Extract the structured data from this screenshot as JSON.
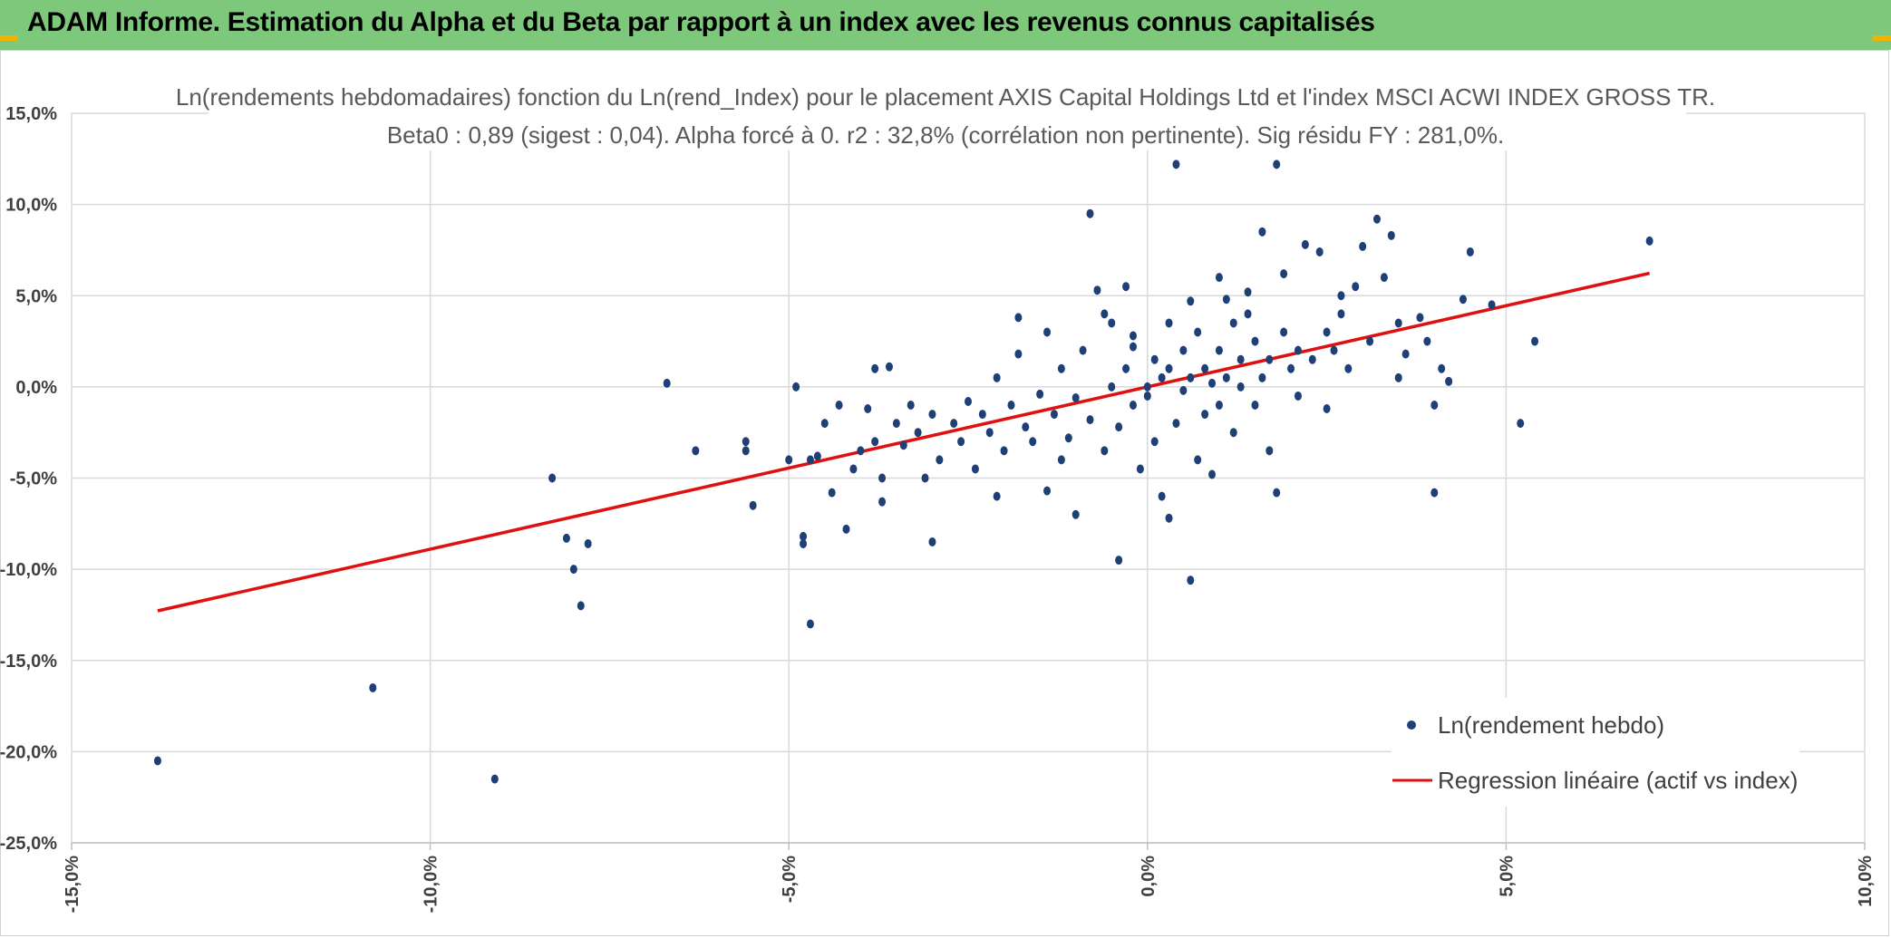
{
  "header": {
    "title": "ADAM Informe. Estimation du Alpha et du Beta par rapport à un index avec les revenus connus capitalisés"
  },
  "colors": {
    "header_bg": "#7dc87a",
    "point": "#1f3f77",
    "regression": "#e01010",
    "grid": "#d9d9d9"
  },
  "chart_data": {
    "type": "scatter",
    "title": "Ln(rendements hebdomadaires) fonction du Ln(rend_Index) pour le placement AXIS Capital Holdings Ltd et l'index MSCI ACWI INDEX GROSS TR.",
    "subtitle": "Beta0 : 0,89 (sigest : 0,04). Alpha forcé à 0. r2 : 32,8% (corrélation non pertinente). Sig résidu FY : 281,0%.",
    "xlim": [
      -0.15,
      0.1
    ],
    "ylim": [
      -0.25,
      0.15
    ],
    "x_ticks": [
      "-15,0%",
      "-10,0%",
      "-5,0%",
      "0,0%",
      "5,0%",
      "10,0%"
    ],
    "y_ticks": [
      "15,0%",
      "10,0%",
      "5,0%",
      "0,0%",
      "-5,0%",
      "-10,0%",
      "-15,0%",
      "-20,0%",
      "-25,0%"
    ],
    "grid": true,
    "legend_position": "bottom-right",
    "series": [
      {
        "name": "Ln(rendement hebdo)",
        "kind": "scatter",
        "points": [
          [
            -0.138,
            -0.205
          ],
          [
            -0.108,
            -0.165
          ],
          [
            -0.091,
            -0.215
          ],
          [
            -0.083,
            -0.05
          ],
          [
            -0.081,
            -0.083
          ],
          [
            -0.08,
            -0.1
          ],
          [
            -0.079,
            -0.12
          ],
          [
            -0.078,
            -0.086
          ],
          [
            -0.067,
            0.002
          ],
          [
            -0.063,
            -0.035
          ],
          [
            -0.056,
            -0.03
          ],
          [
            -0.056,
            -0.035
          ],
          [
            -0.055,
            -0.065
          ],
          [
            -0.05,
            -0.04
          ],
          [
            -0.049,
            0.0
          ],
          [
            -0.048,
            -0.082
          ],
          [
            -0.048,
            -0.086
          ],
          [
            -0.047,
            -0.13
          ],
          [
            -0.047,
            -0.04
          ],
          [
            -0.046,
            -0.038
          ],
          [
            -0.045,
            -0.02
          ],
          [
            -0.044,
            -0.058
          ],
          [
            -0.043,
            -0.01
          ],
          [
            -0.042,
            -0.078
          ],
          [
            -0.041,
            -0.045
          ],
          [
            -0.04,
            -0.035
          ],
          [
            -0.039,
            -0.012
          ],
          [
            -0.038,
            -0.03
          ],
          [
            -0.038,
            0.01
          ],
          [
            -0.037,
            -0.05
          ],
          [
            -0.037,
            -0.063
          ],
          [
            -0.036,
            0.011
          ],
          [
            -0.035,
            -0.02
          ],
          [
            -0.034,
            -0.032
          ],
          [
            -0.033,
            -0.01
          ],
          [
            -0.032,
            -0.025
          ],
          [
            -0.031,
            -0.05
          ],
          [
            -0.03,
            -0.015
          ],
          [
            -0.03,
            -0.085
          ],
          [
            -0.029,
            -0.04
          ],
          [
            -0.027,
            -0.02
          ],
          [
            -0.026,
            -0.03
          ],
          [
            -0.025,
            -0.008
          ],
          [
            -0.024,
            -0.045
          ],
          [
            -0.023,
            -0.015
          ],
          [
            -0.022,
            -0.025
          ],
          [
            -0.021,
            -0.06
          ],
          [
            -0.021,
            0.005
          ],
          [
            -0.02,
            -0.035
          ],
          [
            -0.019,
            -0.01
          ],
          [
            -0.018,
            0.018
          ],
          [
            -0.018,
            0.038
          ],
          [
            -0.017,
            -0.022
          ],
          [
            -0.016,
            -0.03
          ],
          [
            -0.015,
            -0.004
          ],
          [
            -0.014,
            -0.057
          ],
          [
            -0.013,
            -0.015
          ],
          [
            -0.012,
            -0.04
          ],
          [
            -0.012,
            0.01
          ],
          [
            -0.011,
            -0.028
          ],
          [
            -0.01,
            -0.006
          ],
          [
            -0.01,
            -0.07
          ],
          [
            -0.009,
            0.02
          ],
          [
            -0.008,
            0.095
          ],
          [
            -0.008,
            -0.018
          ],
          [
            -0.007,
            0.053
          ],
          [
            -0.006,
            -0.035
          ],
          [
            -0.005,
            0.0
          ],
          [
            -0.005,
            0.035
          ],
          [
            -0.004,
            -0.022
          ],
          [
            -0.003,
            0.055
          ],
          [
            -0.003,
            0.01
          ],
          [
            -0.002,
            -0.01
          ],
          [
            -0.002,
            0.028
          ],
          [
            -0.001,
            -0.045
          ],
          [
            0.0,
            0.0
          ],
          [
            0.0,
            -0.005
          ],
          [
            0.001,
            0.015
          ],
          [
            0.001,
            -0.03
          ],
          [
            0.002,
            0.005
          ],
          [
            0.002,
            -0.06
          ],
          [
            0.003,
            0.01
          ],
          [
            0.003,
            0.035
          ],
          [
            0.004,
            0.122
          ],
          [
            0.004,
            -0.02
          ],
          [
            0.005,
            -0.002
          ],
          [
            0.005,
            0.02
          ],
          [
            0.006,
            -0.106
          ],
          [
            0.006,
            0.005
          ],
          [
            0.007,
            -0.04
          ],
          [
            0.007,
            0.03
          ],
          [
            0.008,
            0.01
          ],
          [
            0.008,
            -0.015
          ],
          [
            0.009,
            0.002
          ],
          [
            0.01,
            0.02
          ],
          [
            0.01,
            -0.01
          ],
          [
            0.011,
            0.048
          ],
          [
            0.011,
            0.005
          ],
          [
            0.012,
            -0.025
          ],
          [
            0.013,
            0.015
          ],
          [
            0.013,
            0.0
          ],
          [
            0.014,
            0.04
          ],
          [
            0.015,
            -0.01
          ],
          [
            0.015,
            0.025
          ],
          [
            0.016,
            0.085
          ],
          [
            0.016,
            0.005
          ],
          [
            0.017,
            -0.035
          ],
          [
            0.017,
            0.015
          ],
          [
            0.018,
            0.122
          ],
          [
            0.018,
            -0.058
          ],
          [
            0.019,
            0.03
          ],
          [
            0.02,
            0.01
          ],
          [
            0.021,
            0.02
          ],
          [
            0.021,
            -0.005
          ],
          [
            0.022,
            0.078
          ],
          [
            0.023,
            0.015
          ],
          [
            0.024,
            0.074
          ],
          [
            0.025,
            0.03
          ],
          [
            0.025,
            -0.012
          ],
          [
            0.026,
            0.02
          ],
          [
            0.027,
            0.04
          ],
          [
            0.028,
            0.01
          ],
          [
            0.029,
            0.055
          ],
          [
            0.03,
            0.077
          ],
          [
            0.031,
            0.025
          ],
          [
            0.032,
            0.092
          ],
          [
            0.033,
            0.06
          ],
          [
            0.034,
            0.083
          ],
          [
            0.035,
            0.035
          ],
          [
            0.035,
            0.005
          ],
          [
            0.036,
            0.018
          ],
          [
            0.038,
            0.038
          ],
          [
            0.039,
            0.025
          ],
          [
            0.04,
            -0.058
          ],
          [
            0.04,
            -0.01
          ],
          [
            0.041,
            0.01
          ],
          [
            0.042,
            0.003
          ],
          [
            0.044,
            0.048
          ],
          [
            0.045,
            0.074
          ],
          [
            0.048,
            0.045
          ],
          [
            0.052,
            -0.02
          ],
          [
            0.054,
            0.025
          ],
          [
            0.07,
            0.08
          ],
          [
            -0.004,
            -0.095
          ],
          [
            0.003,
            -0.072
          ],
          [
            -0.006,
            0.04
          ],
          [
            0.01,
            0.06
          ],
          [
            0.014,
            0.052
          ],
          [
            0.006,
            0.047
          ],
          [
            -0.014,
            0.03
          ],
          [
            0.019,
            0.062
          ],
          [
            0.027,
            0.05
          ],
          [
            0.009,
            -0.048
          ],
          [
            -0.002,
            0.022
          ],
          [
            0.012,
            0.035
          ]
        ]
      },
      {
        "name": "Regression linéaire (actif vs index)",
        "kind": "line",
        "points": [
          [
            -0.138,
            -0.1228
          ],
          [
            0.07,
            0.0623
          ]
        ]
      }
    ]
  },
  "legend": {
    "scatter_label": "Ln(rendement hebdo)",
    "line_label": "Regression linéaire (actif vs index)"
  }
}
